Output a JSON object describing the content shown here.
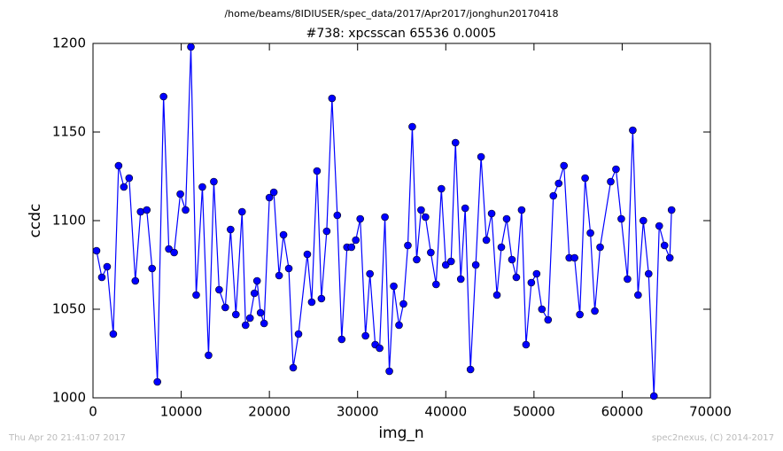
{
  "chart_data": {
    "type": "line",
    "suptitle": "/home/beams/8IDIUSER/spec_data/2017/Apr2017/jonghun20170418",
    "title": "#738: xpcsscan 65536 0.0005",
    "x_label": "img_n",
    "y_label": "ccdc",
    "footer_left": "Thu Apr 20 21:41:07 2017",
    "footer_right": "spec2nexus, (C) 2014-2017",
    "x": [
      400,
      1000,
      1600,
      2300,
      2900,
      3500,
      4100,
      4800,
      5400,
      6100,
      6700,
      7300,
      8000,
      8600,
      9200,
      9900,
      10500,
      11100,
      11700,
      12400,
      13100,
      13700,
      14300,
      15000,
      15600,
      16200,
      16900,
      17300,
      17800,
      18300,
      18600,
      19000,
      19400,
      20000,
      20500,
      21100,
      21600,
      22200,
      22700,
      23300,
      24300,
      24800,
      25400,
      25900,
      26500,
      27100,
      27700,
      28200,
      28800,
      29300,
      29800,
      30300,
      30900,
      31400,
      32000,
      32500,
      33100,
      33600,
      34100,
      34700,
      35200,
      35700,
      36200,
      36700,
      37200,
      37700,
      38300,
      38900,
      39500,
      40000,
      40600,
      41100,
      41700,
      42200,
      42800,
      43400,
      44000,
      44600,
      45200,
      45800,
      46300,
      46900,
      47500,
      48000,
      48600,
      49100,
      49700,
      50300,
      50900,
      51600,
      52200,
      52800,
      53400,
      54000,
      54600,
      55200,
      55800,
      56400,
      56900,
      57500,
      58700,
      59300,
      59900,
      60600,
      61200,
      61800,
      62400,
      63000,
      63600,
      64200,
      64800,
      65400,
      65600
    ],
    "series": [
      {
        "name": "ccdc",
        "color": "#0000ff",
        "values": [
          1083,
          1068,
          1074,
          1036,
          1131,
          1119,
          1124,
          1066,
          1105,
          1106,
          1073,
          1009,
          1170,
          1084,
          1082,
          1115,
          1106,
          1198,
          1058,
          1119,
          1024,
          1122,
          1061,
          1051,
          1095,
          1047,
          1105,
          1041,
          1045,
          1059,
          1066,
          1048,
          1042,
          1113,
          1116,
          1069,
          1092,
          1073,
          1017,
          1036,
          1081,
          1054,
          1128,
          1056,
          1094,
          1169,
          1103,
          1033,
          1085,
          1085,
          1089,
          1101,
          1035,
          1070,
          1030,
          1028,
          1102,
          1015,
          1063,
          1041,
          1053,
          1086,
          1153,
          1078,
          1106,
          1102,
          1082,
          1064,
          1118,
          1075,
          1077,
          1144,
          1067,
          1107,
          1016,
          1075,
          1136,
          1089,
          1104,
          1058,
          1085,
          1101,
          1078,
          1068,
          1106,
          1030,
          1065,
          1070,
          1050,
          1044,
          1114,
          1121,
          1131,
          1079,
          1079,
          1047,
          1124,
          1093,
          1049,
          1085,
          1122,
          1129,
          1101,
          1067,
          1151,
          1058,
          1100,
          1070,
          1001,
          1097,
          1086,
          1079,
          1106
        ]
      }
    ],
    "xlim": [
      0,
      70000
    ],
    "xticks": [
      0,
      10000,
      20000,
      30000,
      40000,
      50000,
      60000,
      70000
    ],
    "ylim": [
      1000,
      1200
    ],
    "yticks": [
      1000,
      1050,
      1100,
      1150,
      1200
    ],
    "grid": false,
    "markers": true
  }
}
